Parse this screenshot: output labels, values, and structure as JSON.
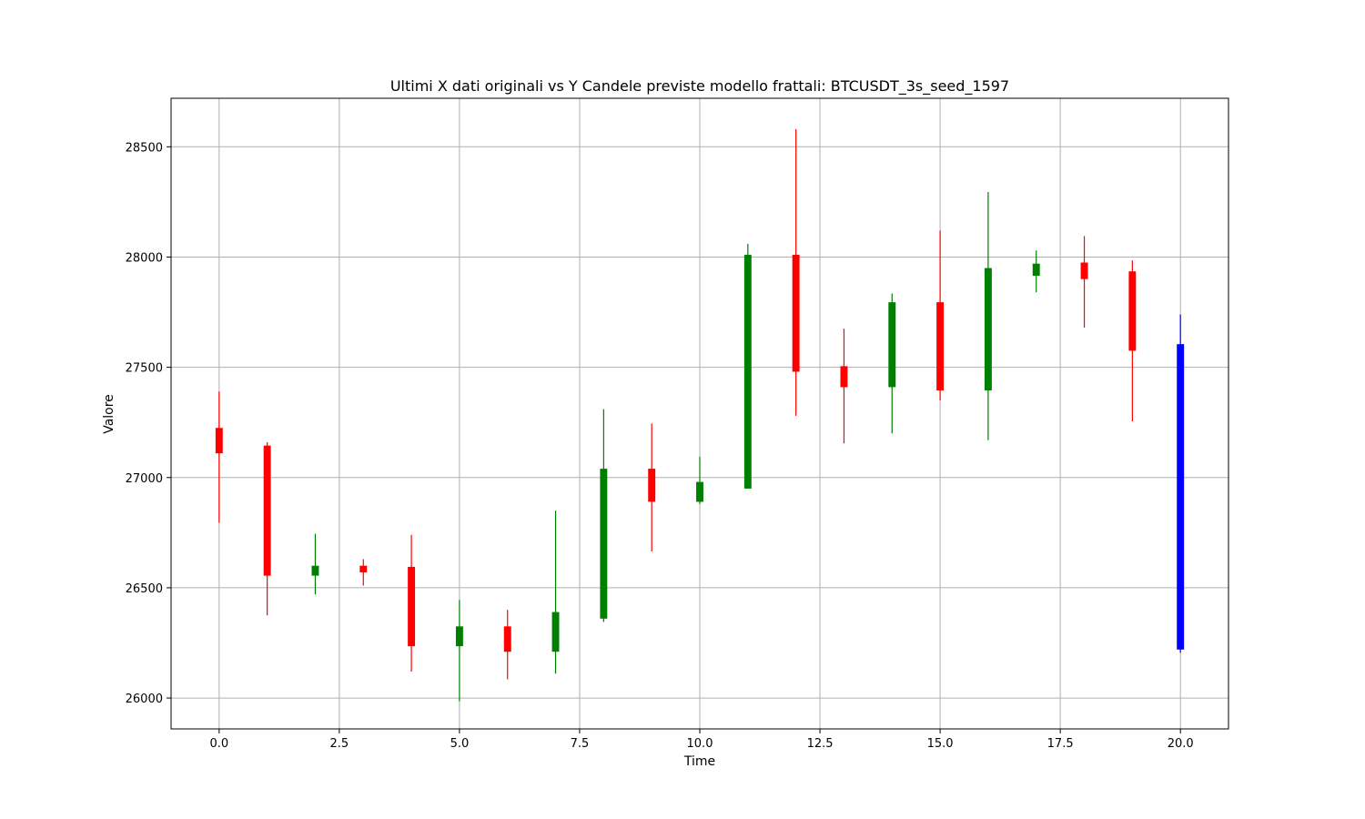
{
  "chart_data": {
    "type": "candlestick",
    "title": "Ultimi X dati originali vs Y Candele previste modello frattali: BTCUSDT_3s_seed_1597",
    "xlabel": "Time",
    "ylabel": "Valore",
    "xlim": [
      -1,
      21
    ],
    "ylim": [
      25860,
      28720
    ],
    "xticks": [
      "0.0",
      "2.5",
      "5.0",
      "7.5",
      "10.0",
      "12.5",
      "15.0",
      "17.5",
      "20.0"
    ],
    "yticks": [
      "26000",
      "26500",
      "27000",
      "27500",
      "28000",
      "28500"
    ],
    "grid": true,
    "colors": {
      "up": "#008000",
      "down": "#ff0000",
      "predicted": "#0000ff"
    },
    "candles": [
      {
        "x": 0,
        "open": 27225,
        "high": 27390,
        "low": 26795,
        "close": 27110,
        "kind": "down"
      },
      {
        "x": 1,
        "open": 27145,
        "high": 27160,
        "low": 26375,
        "close": 26555,
        "kind": "down"
      },
      {
        "x": 2,
        "open": 26555,
        "high": 26745,
        "low": 26470,
        "close": 26600,
        "kind": "up"
      },
      {
        "x": 3,
        "open": 26600,
        "high": 26630,
        "low": 26510,
        "close": 26570,
        "kind": "down"
      },
      {
        "x": 4,
        "open": 26595,
        "high": 26740,
        "low": 26120,
        "close": 26235,
        "kind": "down"
      },
      {
        "x": 5,
        "open": 26235,
        "high": 26445,
        "low": 25985,
        "close": 26325,
        "kind": "up"
      },
      {
        "x": 6,
        "open": 26325,
        "high": 26400,
        "low": 26085,
        "close": 26210,
        "kind": "down"
      },
      {
        "x": 7,
        "open": 26210,
        "high": 26850,
        "low": 26110,
        "close": 26390,
        "kind": "up"
      },
      {
        "x": 8,
        "open": 26360,
        "high": 27310,
        "low": 26345,
        "close": 27040,
        "kind": "up"
      },
      {
        "x": 9,
        "open": 27040,
        "high": 27245,
        "low": 26665,
        "close": 26890,
        "kind": "down"
      },
      {
        "x": 10,
        "open": 26890,
        "high": 27095,
        "low": 26880,
        "close": 26980,
        "kind": "up"
      },
      {
        "x": 11,
        "open": 26950,
        "high": 28060,
        "low": 26950,
        "close": 28010,
        "kind": "up"
      },
      {
        "x": 12,
        "open": 28010,
        "high": 28580,
        "low": 27280,
        "close": 27480,
        "kind": "down"
      },
      {
        "x": 13,
        "open": 27505,
        "high": 27675,
        "low": 27155,
        "close": 27410,
        "kind": "down"
      },
      {
        "x": 14,
        "open": 27410,
        "high": 27835,
        "low": 27200,
        "close": 27795,
        "kind": "up"
      },
      {
        "x": 15,
        "open": 27795,
        "high": 28120,
        "low": 27350,
        "close": 27395,
        "kind": "down"
      },
      {
        "x": 16,
        "open": 27395,
        "high": 28295,
        "low": 27170,
        "close": 27950,
        "kind": "up"
      },
      {
        "x": 17,
        "open": 27915,
        "high": 28030,
        "low": 27840,
        "close": 27970,
        "kind": "up"
      },
      {
        "x": 18,
        "open": 27975,
        "high": 28095,
        "low": 27680,
        "close": 27900,
        "kind": "down"
      },
      {
        "x": 19,
        "open": 27935,
        "high": 27985,
        "low": 27255,
        "close": 27575,
        "kind": "down"
      },
      {
        "x": 20,
        "open": 27605,
        "high": 27740,
        "low": 26205,
        "close": 26220,
        "kind": "predicted"
      }
    ]
  }
}
